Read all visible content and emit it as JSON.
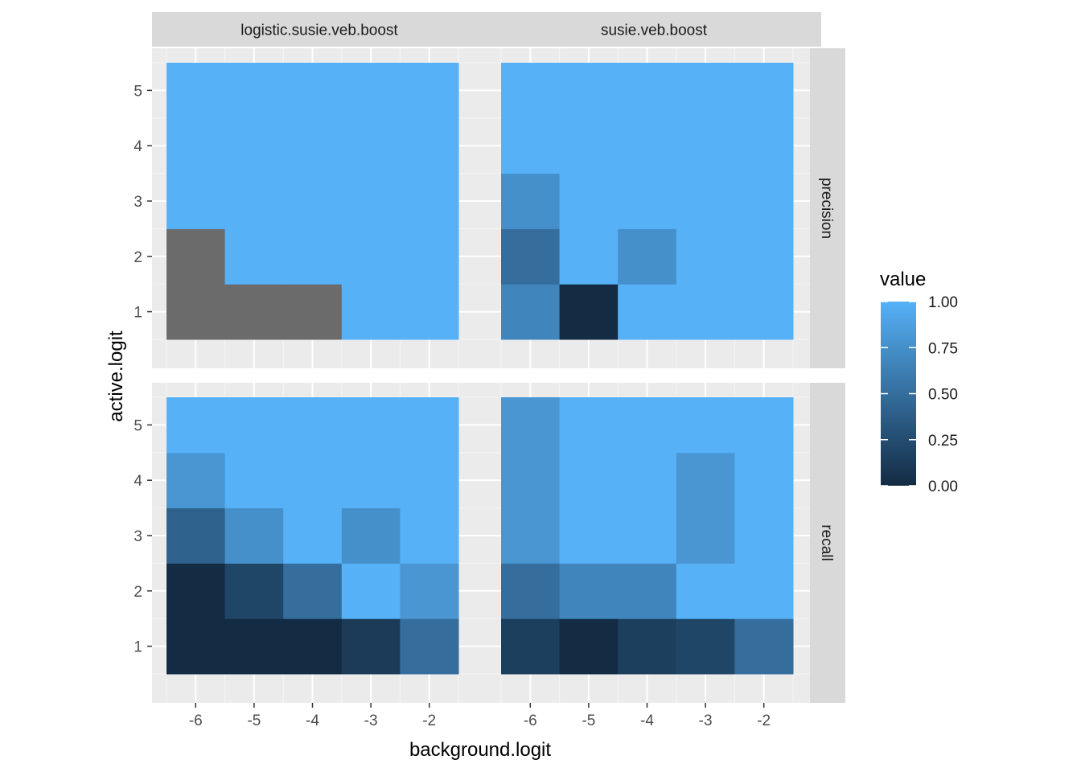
{
  "chart_data": {
    "type": "heatmap",
    "xlabel": "background.logit",
    "ylabel": "active.logit",
    "x": [
      -6,
      -5,
      -4,
      -3,
      -2
    ],
    "y": [
      1,
      2,
      3,
      4,
      5
    ],
    "x_tick_labels": [
      "-6",
      "-5",
      "-4",
      "-3",
      "-2"
    ],
    "y_tick_labels": [
      "1",
      "2",
      "3",
      "4",
      "5"
    ],
    "xlim": [
      -6.5,
      -1.5
    ],
    "ylim": [
      0.5,
      5.5
    ],
    "grid": true,
    "na_color": "#6b6b6b",
    "column_facets": [
      "logistic.susie.veb.boost",
      "susie.veb.boost"
    ],
    "row_facets": [
      "precision",
      "recall"
    ],
    "legend": {
      "title": "value",
      "position": "right",
      "low_color": "#132b43",
      "high_color": "#56b1f7",
      "range": [
        0,
        1
      ],
      "ticks": [
        0,
        0.25,
        0.5,
        0.75,
        1
      ],
      "tick_labels": [
        "0.00",
        "0.25",
        "0.50",
        "0.75",
        "1.00"
      ]
    },
    "panels": [
      {
        "col": "logistic.susie.veb.boost",
        "row": "precision",
        "values": [
          [
            null,
            null,
            null,
            1,
            1
          ],
          [
            null,
            1,
            1,
            1,
            1
          ],
          [
            1,
            1,
            1,
            1,
            1
          ],
          [
            1,
            1,
            1,
            1,
            1
          ],
          [
            1,
            1,
            1,
            1,
            1
          ]
        ]
      },
      {
        "col": "susie.veb.boost",
        "row": "precision",
        "values": [
          [
            0.67,
            0,
            1,
            1,
            1
          ],
          [
            0.5,
            1,
            0.75,
            1,
            1
          ],
          [
            0.75,
            1,
            1,
            1,
            1
          ],
          [
            1,
            1,
            1,
            1,
            1
          ],
          [
            1,
            1,
            1,
            1,
            1
          ]
        ]
      },
      {
        "col": "logistic.susie.veb.boost",
        "row": "recall",
        "values": [
          [
            0,
            0,
            0,
            0.12,
            0.5
          ],
          [
            0,
            0.2,
            0.5,
            1,
            0.8
          ],
          [
            0.4,
            0.75,
            1,
            0.75,
            1
          ],
          [
            0.8,
            1,
            1,
            1,
            1
          ],
          [
            1,
            1,
            1,
            1,
            1
          ]
        ]
      },
      {
        "col": "susie.veb.boost",
        "row": "recall",
        "values": [
          [
            0.15,
            0,
            0.15,
            0.2,
            0.5
          ],
          [
            0.5,
            0.67,
            0.67,
            1,
            1
          ],
          [
            0.8,
            1,
            1,
            0.8,
            1
          ],
          [
            0.8,
            1,
            1,
            0.8,
            1
          ],
          [
            0.8,
            1,
            1,
            1,
            1
          ]
        ]
      }
    ]
  }
}
